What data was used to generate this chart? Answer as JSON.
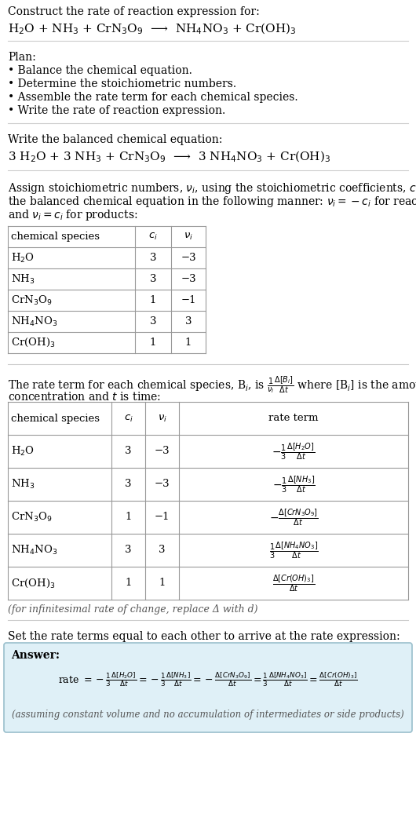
{
  "title_line1": "Construct the rate of reaction expression for:",
  "title_line2": "H$_2$O + NH$_3$ + CrN$_3$O$_9$  ⟶  NH$_4$NO$_3$ + Cr(OH)$_3$",
  "plan_header": "Plan:",
  "plan_items": [
    "• Balance the chemical equation.",
    "• Determine the stoichiometric numbers.",
    "• Assemble the rate term for each chemical species.",
    "• Write the rate of reaction expression."
  ],
  "balanced_header": "Write the balanced chemical equation:",
  "balanced_eq": "3 H$_2$O + 3 NH$_3$ + CrN$_3$O$_9$  ⟶  3 NH$_4$NO$_3$ + Cr(OH)$_3$",
  "stoich_intro": "Assign stoichiometric numbers, $\\nu_i$, using the stoichiometric coefficients, $c_i$, from\nthe balanced chemical equation in the following manner: $\\nu_i = -c_i$ for reactants\nand $\\nu_i = c_i$ for products:",
  "table1_headers": [
    "chemical species",
    "$c_i$",
    "$\\nu_i$"
  ],
  "table1_rows": [
    [
      "H$_2$O",
      "3",
      "−3"
    ],
    [
      "NH$_3$",
      "3",
      "−3"
    ],
    [
      "CrN$_3$O$_9$",
      "1",
      "−1"
    ],
    [
      "NH$_4$NO$_3$",
      "3",
      "3"
    ],
    [
      "Cr(OH)$_3$",
      "1",
      "1"
    ]
  ],
  "rate_line1": "The rate term for each chemical species, B$_i$, is $\\frac{1}{\\nu_i}\\frac{\\Delta[B_i]}{\\Delta t}$ where [B$_i$] is the amount",
  "rate_line2": "concentration and $t$ is time:",
  "table2_headers": [
    "chemical species",
    "$c_i$",
    "$\\nu_i$",
    "rate term"
  ],
  "table2_rows": [
    [
      "H$_2$O",
      "3",
      "−3",
      "$-\\frac{1}{3}\\frac{\\Delta[H_2O]}{\\Delta t}$"
    ],
    [
      "NH$_3$",
      "3",
      "−3",
      "$-\\frac{1}{3}\\frac{\\Delta[NH_3]}{\\Delta t}$"
    ],
    [
      "CrN$_3$O$_9$",
      "1",
      "−1",
      "$-\\frac{\\Delta[CrN_3O_9]}{\\Delta t}$"
    ],
    [
      "NH$_4$NO$_3$",
      "3",
      "3",
      "$\\frac{1}{3}\\frac{\\Delta[NH_4NO_3]}{\\Delta t}$"
    ],
    [
      "Cr(OH)$_3$",
      "1",
      "1",
      "$\\frac{\\Delta[Cr(OH)_3]}{\\Delta t}$"
    ]
  ],
  "infinitesimal_note": "(for infinitesimal rate of change, replace Δ with d)",
  "set_equal_header": "Set the rate terms equal to each other to arrive at the rate expression:",
  "answer_label": "Answer:",
  "answer_note": "(assuming constant volume and no accumulation of intermediates or side products)",
  "bg_color": "#ffffff",
  "text_color": "#000000",
  "gray_text": "#555555",
  "table_border_color": "#999999",
  "sep_color": "#cccccc",
  "answer_bg": "#dff0f7",
  "answer_border": "#9abfcc"
}
